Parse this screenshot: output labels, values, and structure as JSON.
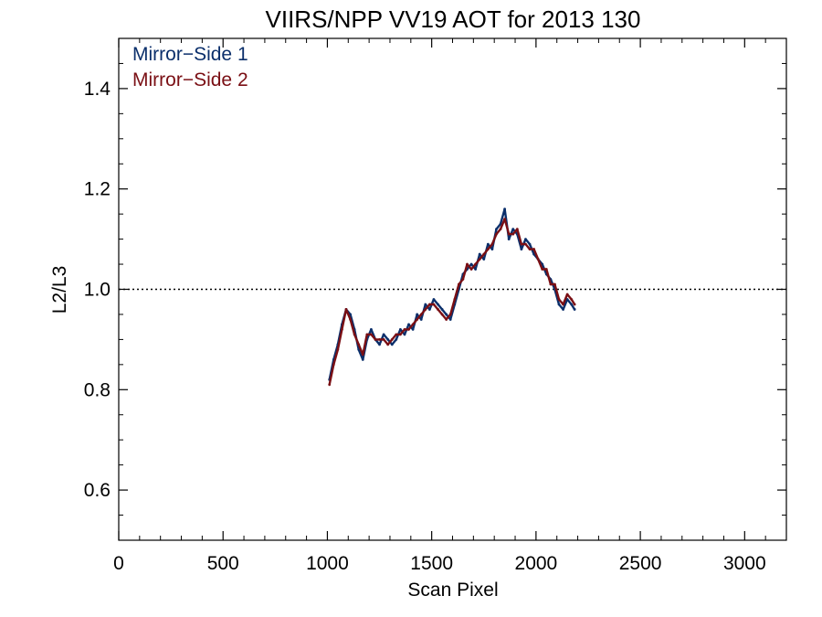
{
  "chart_data": {
    "type": "line",
    "title": "VIIRS/NPP VV19 AOT for 2013 130",
    "xlabel": "Scan Pixel",
    "ylabel": "L2/L3",
    "xlim": [
      0,
      3200
    ],
    "ylim": [
      0.5,
      1.5
    ],
    "x_ticks": [
      0,
      500,
      1000,
      1500,
      2000,
      2500,
      3000
    ],
    "x_tick_labels": [
      "0",
      "500",
      "1000",
      "1500",
      "2000",
      "2500",
      "3000"
    ],
    "y_ticks": [
      0.6,
      0.8,
      1.0,
      1.2,
      1.4
    ],
    "y_tick_labels": [
      "0.6",
      "0.8",
      "1.0",
      "1.2",
      "1.4"
    ],
    "reference_line": {
      "y": 1.0,
      "style": "dotted",
      "color": "#000000"
    },
    "grid": false,
    "legend_position": "top-left",
    "series": [
      {
        "name": "Mirror−Side 1",
        "color": "#0b2f6b",
        "x": [
          1010,
          1030,
          1050,
          1070,
          1090,
          1110,
          1130,
          1150,
          1170,
          1190,
          1210,
          1230,
          1250,
          1270,
          1290,
          1310,
          1330,
          1350,
          1370,
          1390,
          1410,
          1430,
          1450,
          1470,
          1490,
          1510,
          1530,
          1550,
          1570,
          1590,
          1610,
          1630,
          1650,
          1670,
          1690,
          1710,
          1730,
          1750,
          1770,
          1790,
          1810,
          1830,
          1850,
          1870,
          1890,
          1910,
          1930,
          1950,
          1970,
          1990,
          2010,
          2030,
          2050,
          2070,
          2090,
          2110,
          2130,
          2150,
          2170,
          2185
        ],
        "y": [
          0.82,
          0.86,
          0.89,
          0.93,
          0.96,
          0.95,
          0.92,
          0.88,
          0.86,
          0.9,
          0.92,
          0.9,
          0.89,
          0.91,
          0.9,
          0.89,
          0.9,
          0.92,
          0.91,
          0.93,
          0.92,
          0.95,
          0.94,
          0.97,
          0.96,
          0.98,
          0.97,
          0.96,
          0.95,
          0.94,
          0.97,
          1.0,
          1.03,
          1.04,
          1.05,
          1.04,
          1.07,
          1.06,
          1.09,
          1.08,
          1.12,
          1.13,
          1.16,
          1.1,
          1.12,
          1.11,
          1.08,
          1.1,
          1.09,
          1.07,
          1.06,
          1.05,
          1.03,
          1.02,
          1.0,
          0.97,
          0.96,
          0.98,
          0.97,
          0.96
        ]
      },
      {
        "name": "Mirror−Side 2",
        "color": "#7a0f14",
        "x": [
          1010,
          1030,
          1050,
          1070,
          1090,
          1110,
          1130,
          1150,
          1170,
          1190,
          1210,
          1230,
          1250,
          1270,
          1290,
          1310,
          1330,
          1350,
          1370,
          1390,
          1410,
          1430,
          1450,
          1470,
          1490,
          1510,
          1530,
          1550,
          1570,
          1590,
          1610,
          1630,
          1650,
          1670,
          1690,
          1710,
          1730,
          1750,
          1770,
          1790,
          1810,
          1830,
          1850,
          1870,
          1890,
          1910,
          1930,
          1950,
          1970,
          1990,
          2010,
          2030,
          2050,
          2070,
          2090,
          2110,
          2130,
          2150,
          2170,
          2185
        ],
        "y": [
          0.81,
          0.85,
          0.88,
          0.92,
          0.96,
          0.94,
          0.91,
          0.89,
          0.87,
          0.91,
          0.91,
          0.9,
          0.9,
          0.9,
          0.89,
          0.9,
          0.91,
          0.91,
          0.92,
          0.92,
          0.93,
          0.94,
          0.95,
          0.96,
          0.97,
          0.97,
          0.96,
          0.95,
          0.94,
          0.95,
          0.98,
          1.01,
          1.02,
          1.05,
          1.04,
          1.05,
          1.06,
          1.07,
          1.08,
          1.09,
          1.11,
          1.12,
          1.14,
          1.11,
          1.11,
          1.12,
          1.09,
          1.09,
          1.08,
          1.08,
          1.06,
          1.04,
          1.04,
          1.01,
          1.01,
          0.98,
          0.97,
          0.99,
          0.98,
          0.97
        ]
      }
    ]
  }
}
